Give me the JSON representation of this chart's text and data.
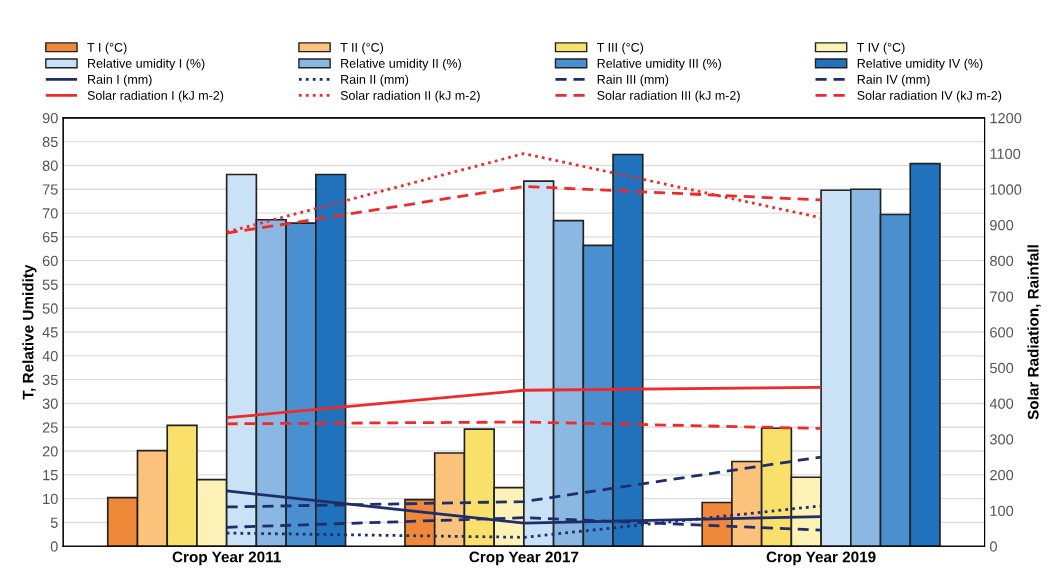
{
  "chart_data": {
    "type": "bar",
    "ylabel": "T, Relative Umidity",
    "y2label": "Solar Radiation, Rainfall",
    "categories": [
      "Crop Year 2011",
      "Crop Year 2017",
      "Crop Year 2019"
    ],
    "ylim": [
      0,
      90
    ],
    "yticks": [
      0,
      5,
      10,
      15,
      20,
      25,
      30,
      35,
      40,
      45,
      50,
      55,
      60,
      65,
      70,
      75,
      80,
      85,
      90
    ],
    "y2lim": [
      0,
      1200
    ],
    "y2ticks": [
      0,
      100,
      200,
      300,
      400,
      500,
      600,
      700,
      800,
      900,
      1000,
      1100,
      1200
    ],
    "grid": "y",
    "legend": "top",
    "marker": "none",
    "series": [
      {
        "name": "T I (°C)",
        "color": "#f0883a",
        "values": [
          10.2,
          9.8,
          9.2
        ]
      },
      {
        "name": "T II (°C)",
        "color": "#fac27a",
        "values": [
          20.1,
          19.6,
          17.8
        ]
      },
      {
        "name": "T III (°C)",
        "color": "#f8e06a",
        "values": [
          25.4,
          24.6,
          24.8
        ]
      },
      {
        "name": "T IV (°C)",
        "color": "#fcf2b5",
        "values": [
          14.0,
          12.3,
          14.5
        ]
      },
      {
        "name": "Relative umidity I (%)",
        "color": "#c9e2f5",
        "values": [
          78.1,
          76.7,
          74.8
        ]
      },
      {
        "name": "Relative umidity II (%)",
        "color": "#8ab8e2",
        "values": [
          68.6,
          68.4,
          75.0
        ]
      },
      {
        "name": "Relative umidity III (%)",
        "color": "#4a8fcf",
        "values": [
          67.9,
          63.2,
          69.7
        ]
      },
      {
        "name": "Relative umidity IV (%)",
        "color": "#1f72bb",
        "values": [
          78.1,
          82.3,
          80.4
        ]
      },
      {
        "name": "Rain I (mm)",
        "type": "line",
        "axis": "y2",
        "line_style": "solid",
        "color": "#1f2d6b",
        "values": [
          155,
          65,
          83
        ]
      },
      {
        "name": "Rain II (mm)",
        "type": "line",
        "axis": "y2",
        "line_style": "dotted",
        "color": "#1f2d6b",
        "values": [
          37,
          25,
          113
        ]
      },
      {
        "name": "Rain III (mm)",
        "type": "line",
        "axis": "y2",
        "line_style": "dashed",
        "color": "#1f2d6b",
        "values": [
          53,
          80,
          45
        ]
      },
      {
        "name": "Rain IV (mm)",
        "type": "line",
        "axis": "y2",
        "line_style": "dashed",
        "color": "#1f2d6b",
        "values": [
          110,
          125,
          250
        ]
      },
      {
        "name": "Solar radiation I (kJ m-2)",
        "type": "line",
        "axis": "y2",
        "line_style": "solid",
        "color": "#ee2a2a",
        "values": [
          360,
          437,
          445
        ]
      },
      {
        "name": "Solar radiation II (kJ m-2)",
        "type": "line",
        "axis": "y2",
        "line_style": "dotted",
        "color": "#ee2a2a",
        "values": [
          880,
          1100,
          920
        ]
      },
      {
        "name": "Solar radiation III (kJ m-2)",
        "type": "line",
        "axis": "y2",
        "line_style": "dashed",
        "color": "#ee2a2a",
        "values": [
          343,
          348,
          330
        ]
      },
      {
        "name": "Solar radiation IV (kJ m-2)",
        "type": "line",
        "axis": "y2",
        "line_style": "dashed",
        "color": "#ee2a2a",
        "values": [
          877,
          1008,
          970
        ]
      }
    ]
  }
}
